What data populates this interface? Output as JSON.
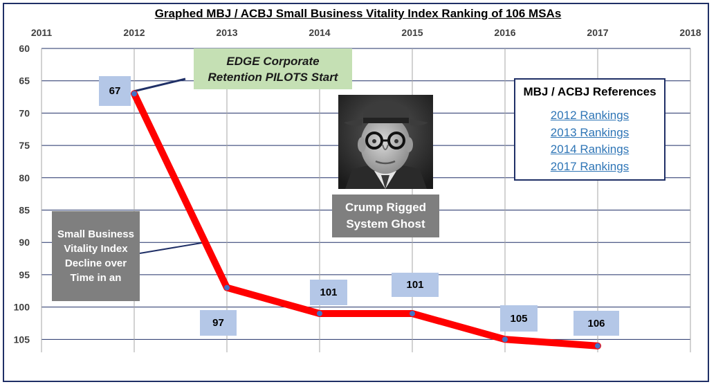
{
  "chart_data": {
    "type": "line",
    "title": "Graphed MBJ / ACBJ Small Business Vitality Index Ranking of 106 MSAs",
    "x_ticks": [
      "2011",
      "2012",
      "2013",
      "2014",
      "2015",
      "2016",
      "2017",
      "2018"
    ],
    "xlim": [
      2011,
      2018
    ],
    "y_ticks": [
      "60",
      "65",
      "70",
      "75",
      "80",
      "85",
      "90",
      "95",
      "100",
      "105"
    ],
    "ylim": [
      60,
      107
    ],
    "y_reversed": true,
    "grid": "both",
    "series": [
      {
        "color": "#ff0000",
        "marker_color": "#4472c4",
        "x": [
          2012,
          2013,
          2014,
          2015,
          2016,
          2017
        ],
        "values": [
          67,
          97,
          101,
          101,
          105,
          106
        ],
        "labels": [
          "67",
          "97",
          "101",
          "101",
          "105",
          "106"
        ]
      }
    ]
  },
  "annotations": {
    "edge": {
      "line1": "EDGE Corporate",
      "line2": "Retention PILOTS Start"
    },
    "svi": "Small Business Vitality Index Decline over Time in an",
    "crump": {
      "line1": "Crump Rigged",
      "line2": "System Ghost"
    }
  },
  "references": {
    "title": "MBJ / ACBJ References",
    "links": [
      "2012 Rankings ",
      "2013 Rankings",
      "2014 Rankings",
      "2017 Rankings"
    ]
  },
  "colors": {
    "line": "#ff0000",
    "marker": "#4472c4",
    "gridline": "#1f2f66",
    "data_label_bg": "#b4c7e7",
    "edge_bg": "#c5e0b4",
    "gray_box": "#7f7f7f",
    "link": "#2e75b6"
  }
}
